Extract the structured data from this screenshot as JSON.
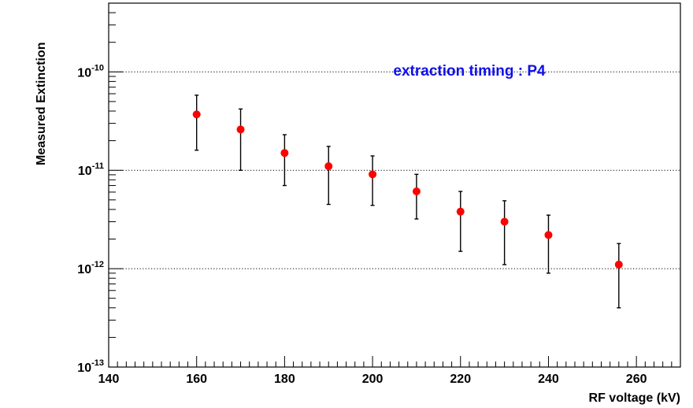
{
  "chart_data": {
    "type": "scatter",
    "xlabel": "RF voltage (kV)",
    "ylabel": "Measured Extinction",
    "annotation": "extraction timing : P4",
    "xlim": [
      140,
      270
    ],
    "ylim": [
      1e-13,
      5e-10
    ],
    "y_scale": "log",
    "grid": "horizontal dotted at decades",
    "x_ticks": [
      "140",
      "160",
      "180",
      "200",
      "220",
      "240",
      "260"
    ],
    "y_ticks": [
      {
        "base": "10",
        "exp": "-13"
      },
      {
        "base": "10",
        "exp": "-12"
      },
      {
        "base": "10",
        "exp": "-11"
      },
      {
        "base": "10",
        "exp": "-10"
      }
    ],
    "marker_color": "#ff0000",
    "points": [
      {
        "x": 160,
        "y": 3.7e-11,
        "ylow": 1.6e-11,
        "yhigh": 5.8e-11
      },
      {
        "x": 170,
        "y": 2.6e-11,
        "ylow": 1e-11,
        "yhigh": 4.2e-11
      },
      {
        "x": 180,
        "y": 1.5e-11,
        "ylow": 7e-12,
        "yhigh": 2.3e-11
      },
      {
        "x": 190,
        "y": 1.1e-11,
        "ylow": 4.5e-12,
        "yhigh": 1.75e-11
      },
      {
        "x": 200,
        "y": 9.1e-12,
        "ylow": 4.4e-12,
        "yhigh": 1.4e-11
      },
      {
        "x": 210,
        "y": 6.1e-12,
        "ylow": 3.2e-12,
        "yhigh": 9.1e-12
      },
      {
        "x": 220,
        "y": 3.8e-12,
        "ylow": 1.5e-12,
        "yhigh": 6.1e-12
      },
      {
        "x": 230,
        "y": 3e-12,
        "ylow": 1.1e-12,
        "yhigh": 4.9e-12
      },
      {
        "x": 240,
        "y": 2.2e-12,
        "ylow": 9e-13,
        "yhigh": 3.5e-12
      },
      {
        "x": 256,
        "y": 1.1e-12,
        "ylow": 4e-13,
        "yhigh": 1.8e-12
      }
    ]
  }
}
